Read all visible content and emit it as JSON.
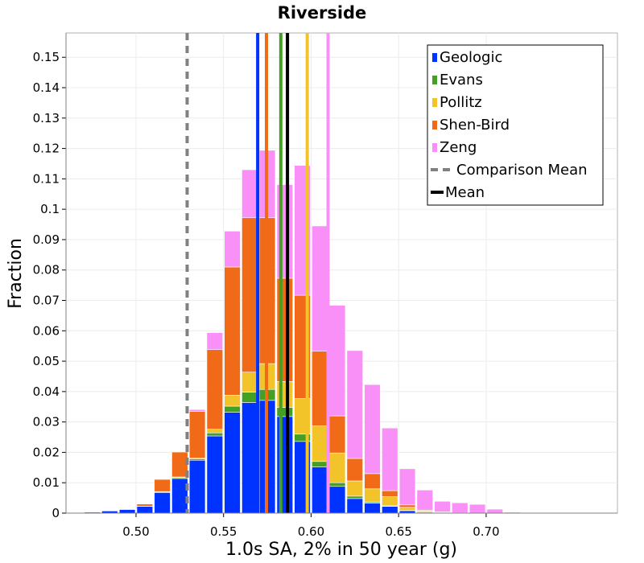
{
  "chart_data": {
    "type": "bar",
    "stacked": true,
    "title": "Riverside",
    "xlabel": "1.0s SA, 2% in 50 year (g)",
    "ylabel": "Fraction",
    "xlim": [
      0.46,
      0.775
    ],
    "ylim": [
      0,
      0.158
    ],
    "grid": true,
    "legend_position": "top-right",
    "x_ticks": [
      "0.50",
      "0.55",
      "0.60",
      "0.65",
      "0.70"
    ],
    "y_ticks": [
      "0",
      "0.01",
      "0.02",
      "0.03",
      "0.04",
      "0.05",
      "0.06",
      "0.07",
      "0.08",
      "0.09",
      "0.1",
      "0.11",
      "0.12",
      "0.13",
      "0.14",
      "0.15"
    ],
    "bin_width": 0.01,
    "x": [
      0.475,
      0.485,
      0.495,
      0.505,
      0.515,
      0.525,
      0.535,
      0.545,
      0.555,
      0.565,
      0.575,
      0.585,
      0.595,
      0.605,
      0.615,
      0.625,
      0.635,
      0.645,
      0.655,
      0.665,
      0.675,
      0.685,
      0.695,
      0.705,
      0.715
    ],
    "series": [
      {
        "name": "Geologic",
        "color": "#0033ff",
        "values": [
          0.0003,
          0.0007,
          0.0012,
          0.0022,
          0.0068,
          0.0114,
          0.0174,
          0.0254,
          0.0332,
          0.0364,
          0.0371,
          0.0318,
          0.0236,
          0.0152,
          0.0088,
          0.0048,
          0.0033,
          0.0022,
          0.0008,
          0.0003,
          0.0001,
          0.0001,
          0,
          0,
          0
        ]
      },
      {
        "name": "Evans",
        "color": "#44a022",
        "values": [
          0,
          0,
          0,
          0.0001,
          0.0002,
          0.0003,
          0.0004,
          0.001,
          0.002,
          0.0034,
          0.0036,
          0.003,
          0.0024,
          0.0018,
          0.0012,
          0.0008,
          0.0004,
          0.0002,
          0.0001,
          0.0001,
          0,
          0,
          0,
          0,
          0
        ]
      },
      {
        "name": "Pollitz",
        "color": "#f2c42a",
        "values": [
          0,
          0,
          0,
          0,
          0.0001,
          0.0002,
          0.0003,
          0.0012,
          0.0036,
          0.0066,
          0.0085,
          0.0085,
          0.0117,
          0.0117,
          0.0098,
          0.005,
          0.0043,
          0.003,
          0.001,
          0.0004,
          0.0002,
          0,
          0,
          0,
          0
        ]
      },
      {
        "name": "Shen-Bird",
        "color": "#f06a17",
        "values": [
          0,
          0,
          0.0001,
          0.0007,
          0.004,
          0.0082,
          0.0154,
          0.0262,
          0.0422,
          0.0508,
          0.048,
          0.034,
          0.034,
          0.0246,
          0.0122,
          0.0074,
          0.005,
          0.002,
          0.0008,
          0.0002,
          0.0001,
          0,
          0,
          0,
          0
        ]
      },
      {
        "name": "Zeng",
        "color": "#f990f7",
        "values": [
          0,
          0,
          0,
          0,
          0,
          0,
          0.0006,
          0.0056,
          0.0118,
          0.0158,
          0.0222,
          0.0308,
          0.0427,
          0.0412,
          0.0364,
          0.0355,
          0.0293,
          0.0206,
          0.0119,
          0.0066,
          0.0035,
          0.0033,
          0.0029,
          0.0013,
          0.0003
        ]
      }
    ],
    "vlines": [
      {
        "name": "Comparison Mean",
        "x": 0.5292,
        "color": "#808080",
        "dashed": true,
        "in_legend": true
      },
      {
        "name": "Mean",
        "x": 0.5865,
        "color": "#000000",
        "dashed": false,
        "in_legend": true
      },
      {
        "name": "Geologic",
        "x": 0.5695,
        "color": "#0033ff",
        "dashed": false,
        "in_legend": false
      },
      {
        "name": "Shen-Bird",
        "x": 0.5745,
        "color": "#f06a17",
        "dashed": false,
        "in_legend": false
      },
      {
        "name": "Evans",
        "x": 0.5827,
        "color": "#44a022",
        "dashed": false,
        "in_legend": false
      },
      {
        "name": "Pollitz",
        "x": 0.5978,
        "color": "#f2c42a",
        "dashed": false,
        "in_legend": false
      },
      {
        "name": "Zeng",
        "x": 0.6097,
        "color": "#f990f7",
        "dashed": false,
        "in_legend": false
      }
    ],
    "legend": [
      {
        "label": "Geologic",
        "kind": "patch",
        "color": "#0033ff"
      },
      {
        "label": "Evans",
        "kind": "patch",
        "color": "#44a022"
      },
      {
        "label": "Pollitz",
        "kind": "patch",
        "color": "#f2c42a"
      },
      {
        "label": "Shen-Bird",
        "kind": "patch",
        "color": "#f06a17"
      },
      {
        "label": "Zeng",
        "kind": "patch",
        "color": "#f990f7"
      },
      {
        "label": "Comparison Mean",
        "kind": "dash",
        "color": "#808080"
      },
      {
        "label": "Mean",
        "kind": "line",
        "color": "#000000"
      }
    ]
  }
}
